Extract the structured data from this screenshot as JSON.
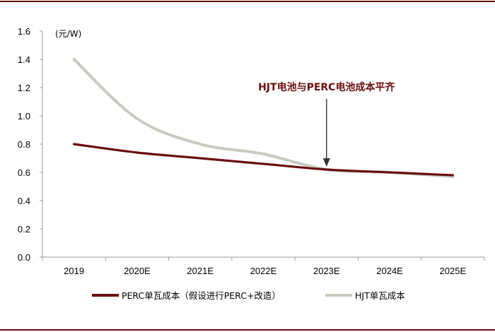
{
  "chart_data": {
    "type": "line",
    "unit_label": "(元/W)",
    "categories": [
      "2019",
      "2020E",
      "2021E",
      "2022E",
      "2023E",
      "2024E",
      "2025E"
    ],
    "ylim": [
      0.0,
      1.6
    ],
    "yticks": [
      "0.0",
      "0.2",
      "0.4",
      "0.6",
      "0.8",
      "1.0",
      "1.2",
      "1.4",
      "1.6"
    ],
    "grid": false,
    "legend_position": "bottom",
    "series": [
      {
        "name": "PERC单瓦成本（假设进行PERC+改造）",
        "color": "#6b0e0e",
        "values": [
          0.8,
          0.74,
          0.7,
          0.66,
          0.62,
          0.6,
          0.58
        ]
      },
      {
        "name": "HJT单瓦成本",
        "color": "#c9c9c2",
        "values": [
          1.4,
          0.98,
          0.8,
          0.73,
          0.62,
          0.6,
          0.57
        ]
      }
    ],
    "annotation": {
      "text": "HJT电池与PERC电池成本平齐",
      "category": "2023E",
      "value": 0.62
    }
  },
  "colors": {
    "frame_rule": "#6b0e0e",
    "axis": "#9a9a9a",
    "arrow": "#333333"
  }
}
